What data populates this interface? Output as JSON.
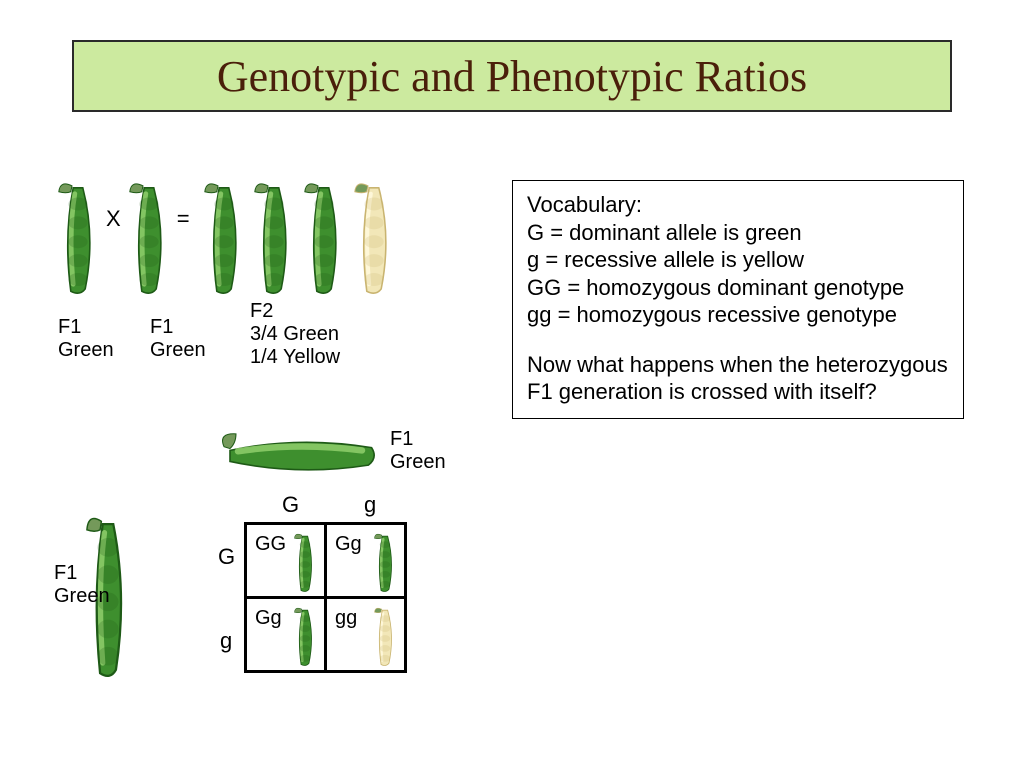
{
  "title": {
    "text": "Genotypic and Phenotypic Ratios",
    "background": "#ccea9f",
    "color": "#4a1f0a",
    "border_color": "#2a2a2a",
    "fontsize": 44
  },
  "vocab": {
    "heading": "Vocabulary:",
    "lines": [
      "G = dominant allele is  green",
      "g = recessive allele is yellow",
      "GG = homozygous dominant genotype",
      "gg = homozygous recessive genotype"
    ],
    "question": "Now what happens when the heterozygous F1 generation is crossed with itself?",
    "fontsize": 22
  },
  "cross": {
    "parent1_label": "F1\nGreen",
    "symbol_x": "X",
    "parent2_label": "F1\nGreen",
    "symbol_eq": "=",
    "f2_label": "F2\n3/4 Green\n1/4 Yellow",
    "f2_green_count": 3,
    "f2_yellow_count": 1
  },
  "punnett": {
    "top_parent_label": "F1\nGreen",
    "left_parent_label": "F1\nGreen",
    "col_alleles": [
      "G",
      "g"
    ],
    "row_alleles": [
      "G",
      "g"
    ],
    "cells": [
      [
        {
          "genotype": "GG",
          "pod": "green"
        },
        {
          "genotype": "Gg",
          "pod": "green"
        }
      ],
      [
        {
          "genotype": "Gg",
          "pod": "green"
        },
        {
          "genotype": "gg",
          "pod": "yellow"
        }
      ]
    ]
  },
  "colors": {
    "pod_green_fill": "#3e8f2e",
    "pod_green_dark": "#1e5a16",
    "pod_green_light": "#8fcf6b",
    "pod_yellow_fill": "#f2e7b8",
    "pod_yellow_dark": "#c9b470",
    "pod_tip": "#74995a"
  }
}
